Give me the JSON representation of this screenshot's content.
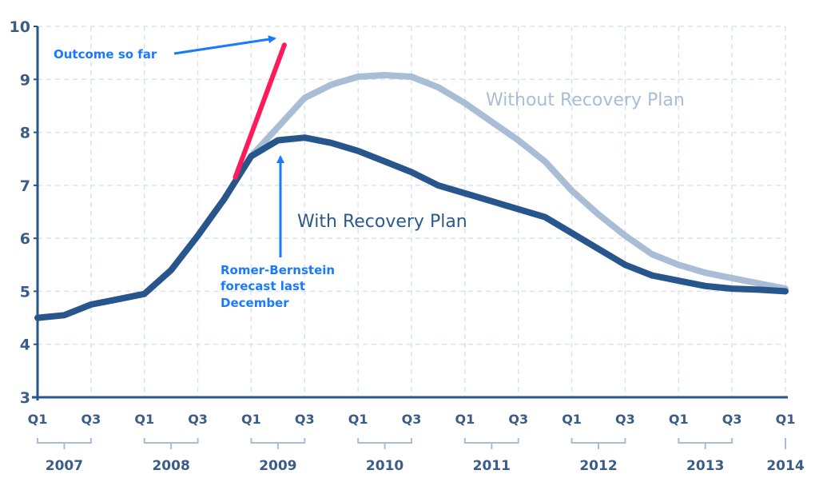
{
  "chart_data": {
    "type": "line",
    "title": "",
    "xlabel": "",
    "ylabel": "",
    "ylim": [
      3,
      10
    ],
    "yticks": [
      "3",
      "4",
      "5",
      "6",
      "7",
      "8",
      "9",
      "10"
    ],
    "xlim": [
      2007.0,
      2014.0
    ],
    "grid": true,
    "x_quarter_ticks": [
      "Q1",
      "Q3",
      "Q1",
      "Q3",
      "Q1",
      "Q3",
      "Q1",
      "Q3",
      "Q1",
      "Q3",
      "Q1",
      "Q3",
      "Q1",
      "Q3",
      "Q1"
    ],
    "x_year_labels": [
      "2007",
      "2008",
      "2009",
      "2010",
      "2011",
      "2012",
      "2013",
      "2014"
    ],
    "series": [
      {
        "name": "With Recovery Plan",
        "color": "#27568c",
        "x": [
          2007.0,
          2007.25,
          2007.5,
          2007.75,
          2008.0,
          2008.25,
          2008.5,
          2008.75,
          2009.0,
          2009.25,
          2009.5,
          2009.75,
          2010.0,
          2010.25,
          2010.5,
          2010.75,
          2011.0,
          2011.25,
          2011.5,
          2011.75,
          2012.0,
          2012.25,
          2012.5,
          2012.75,
          2013.0,
          2013.25,
          2013.5,
          2013.75,
          2014.0
        ],
        "y": [
          4.5,
          4.55,
          4.75,
          4.85,
          4.95,
          5.4,
          6.05,
          6.75,
          7.55,
          7.85,
          7.9,
          7.8,
          7.65,
          7.45,
          7.25,
          7.0,
          6.85,
          6.7,
          6.55,
          6.4,
          6.1,
          5.8,
          5.5,
          5.3,
          5.2,
          5.1,
          5.05,
          5.03,
          5.0
        ]
      },
      {
        "name": "Without Recovery Plan",
        "color": "#a9bed6",
        "x": [
          2009.0,
          2009.25,
          2009.5,
          2009.75,
          2010.0,
          2010.25,
          2010.5,
          2010.75,
          2011.0,
          2011.25,
          2011.5,
          2011.75,
          2012.0,
          2012.25,
          2012.5,
          2012.75,
          2013.0,
          2013.25,
          2013.5,
          2013.75,
          2014.0
        ],
        "y": [
          7.55,
          8.1,
          8.65,
          8.9,
          9.05,
          9.08,
          9.05,
          8.85,
          8.55,
          8.2,
          7.85,
          7.45,
          6.9,
          6.45,
          6.05,
          5.7,
          5.5,
          5.35,
          5.25,
          5.15,
          5.05
        ]
      },
      {
        "name": "Outcome so far",
        "color": "#ff1a5a",
        "x": [
          2008.85,
          2009.31
        ],
        "y": [
          7.15,
          9.65
        ]
      }
    ],
    "annotations": {
      "outcome": "Outcome so far",
      "forecast": [
        "Romer-Bernstein",
        "forecast last",
        "December"
      ],
      "arrow_color": "#1a7aff"
    }
  }
}
